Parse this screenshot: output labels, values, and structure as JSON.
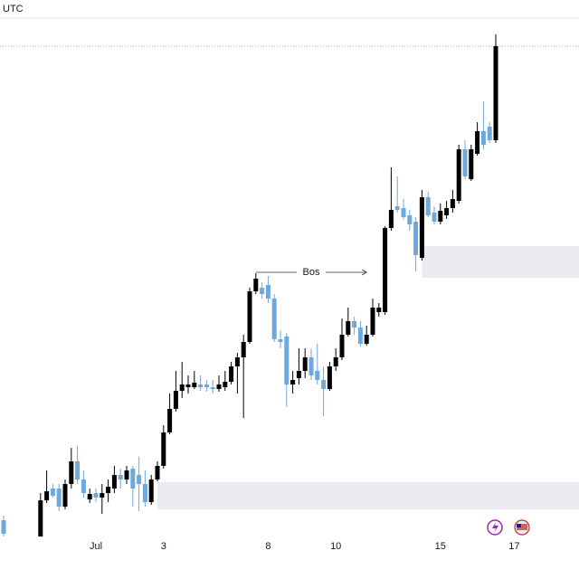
{
  "chart_data": {
    "type": "candlestick",
    "timezone_label": "UTC",
    "categories": [
      null,
      null,
      null,
      null,
      null,
      null,
      null,
      null,
      null,
      null,
      null,
      null,
      null,
      null,
      null,
      "Jul",
      null,
      null,
      null,
      null,
      null,
      null,
      null,
      null,
      null,
      null,
      "3",
      null,
      null,
      null,
      null,
      null,
      null,
      null,
      null,
      null,
      null,
      null,
      null,
      null,
      null,
      null,
      null,
      "8",
      null,
      null,
      null,
      null,
      null,
      null,
      null,
      null,
      null,
      null,
      "10",
      null,
      null,
      null,
      null,
      null,
      null,
      null,
      null,
      null,
      null,
      null,
      null,
      null,
      null,
      null,
      null,
      "15",
      null,
      null,
      null,
      null,
      null,
      null,
      null,
      null,
      null,
      null,
      null,
      "17"
    ],
    "open": [
      65,
      null,
      null,
      null,
      null,
      null,
      47,
      87,
      100,
      100,
      80,
      105,
      130,
      110,
      88,
      95,
      90,
      95,
      100,
      115,
      110,
      122,
      115,
      105,
      85,
      110,
      125,
      162,
      188,
      208,
      212,
      212,
      215,
      215,
      212,
      210,
      212,
      218,
      235,
      245,
      262,
      318,
      322,
      325,
      310,
      265,
      268,
      215,
      222,
      230,
      245,
      230,
      220,
      210,
      235,
      245,
      270,
      285,
      278,
      260,
      270,
      295,
      295,
      388,
      412,
      410,
      402,
      395,
      355,
      422,
      405,
      395,
      402,
      410,
      418,
      475,
      442,
      470,
      495,
      500,
      485,
      null,
      null,
      null
    ],
    "high": [
      70,
      null,
      null,
      null,
      null,
      null,
      95,
      120,
      105,
      105,
      110,
      145,
      147,
      120,
      100,
      100,
      105,
      110,
      125,
      122,
      125,
      125,
      135,
      120,
      115,
      130,
      170,
      205,
      230,
      240,
      225,
      230,
      225,
      220,
      220,
      225,
      230,
      240,
      250,
      270,
      322,
      338,
      328,
      335,
      315,
      275,
      272,
      230,
      255,
      255,
      255,
      260,
      235,
      240,
      255,
      288,
      300,
      290,
      285,
      280,
      310,
      305,
      390,
      455,
      445,
      420,
      408,
      400,
      430,
      428,
      412,
      415,
      418,
      430,
      480,
      485,
      480,
      505,
      528,
      505,
      602,
      null,
      null,
      null
    ],
    "low": [
      47,
      null,
      null,
      null,
      null,
      null,
      47,
      84,
      90,
      75,
      77,
      100,
      105,
      90,
      84,
      85,
      72,
      85,
      95,
      100,
      105,
      80,
      75,
      80,
      82,
      108,
      122,
      160,
      185,
      200,
      205,
      210,
      208,
      207,
      205,
      207,
      208,
      215,
      205,
      178,
      260,
      315,
      310,
      305,
      262,
      255,
      190,
      205,
      215,
      222,
      220,
      215,
      180,
      208,
      230,
      242,
      268,
      270,
      257,
      258,
      268,
      290,
      292,
      385,
      405,
      397,
      385,
      340,
      352,
      400,
      392,
      392,
      398,
      405,
      415,
      442,
      440,
      468,
      475,
      482,
      482,
      null,
      null,
      null
    ],
    "close": [
      50,
      null,
      null,
      null,
      null,
      null,
      87,
      97,
      92,
      80,
      105,
      130,
      110,
      95,
      94,
      90,
      95,
      102,
      115,
      110,
      120,
      100,
      105,
      85,
      110,
      125,
      162,
      188,
      208,
      215,
      215,
      217,
      212,
      212,
      210,
      215,
      218,
      235,
      245,
      262,
      318,
      332,
      315,
      310,
      265,
      262,
      215,
      220,
      230,
      245,
      225,
      220,
      210,
      235,
      245,
      270,
      285,
      278,
      260,
      270,
      300,
      300,
      388,
      408,
      408,
      400,
      392,
      358,
      422,
      402,
      395,
      407,
      410,
      420,
      475,
      445,
      475,
      495,
      480,
      485,
      589,
      null,
      null,
      null
    ],
    "ylim": [
      47,
      620
    ],
    "up_color": "#000000",
    "down_color": "#6fa8dc",
    "zone_color": "#ebebef",
    "zones": [
      {
        "start": 25,
        "top": 107,
        "bottom": 77
      },
      {
        "start": 68,
        "top": 368,
        "bottom": 333
      }
    ],
    "annotations": [
      {
        "text": "Bos",
        "start": 41,
        "end": 59,
        "value": 339
      }
    ]
  }
}
